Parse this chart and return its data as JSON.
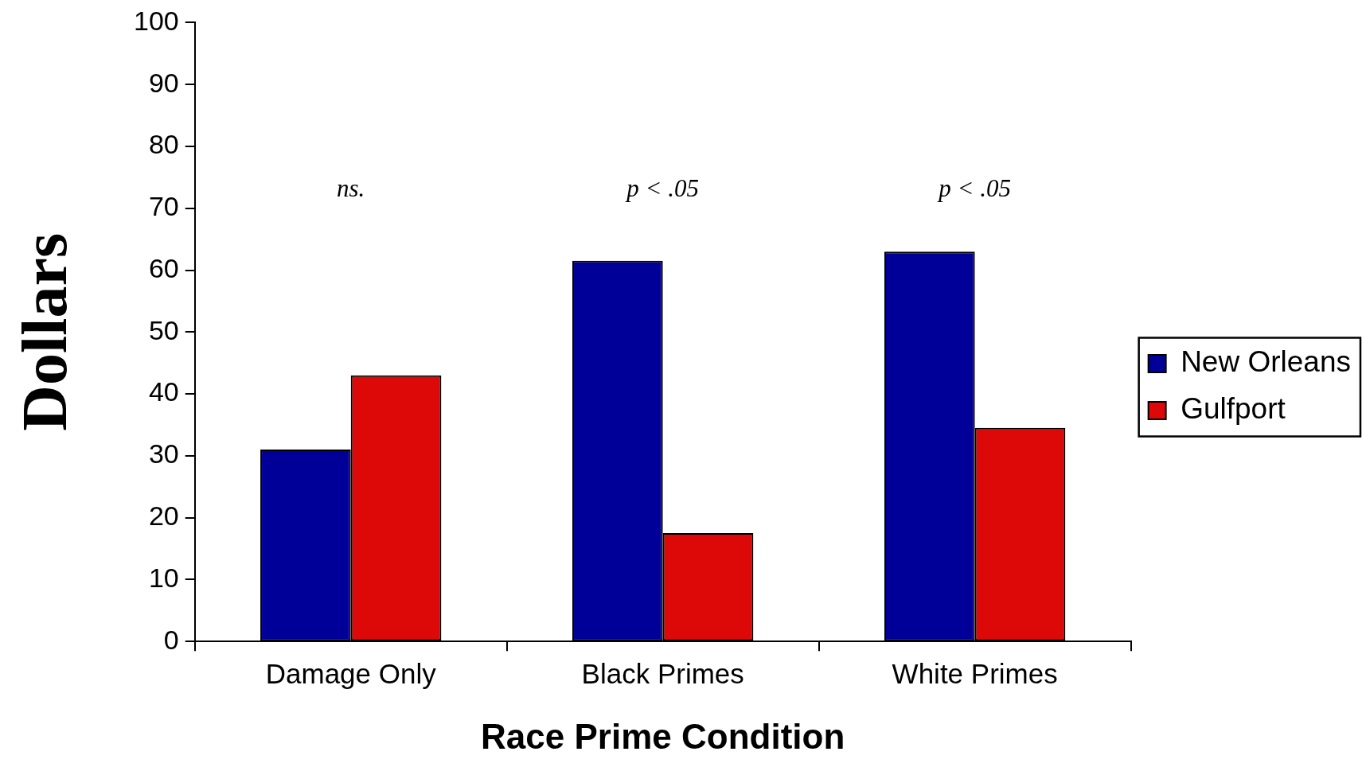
{
  "chart_data": {
    "type": "bar",
    "xlabel": "Race Prime Condition",
    "ylabel": "Dollars",
    "categories": [
      "Damage Only",
      "Black Primes",
      "White Primes"
    ],
    "series": [
      {
        "name": "New Orleans",
        "color": "#000099",
        "values": [
          31,
          61.5,
          63
        ]
      },
      {
        "name": "Gulfport",
        "color": "#dd0808",
        "values": [
          43,
          17.5,
          34.5
        ]
      }
    ],
    "ylim": [
      0,
      100
    ],
    "yticks": [
      0,
      10,
      20,
      30,
      40,
      50,
      60,
      70,
      80,
      90,
      100
    ],
    "grid": false,
    "legend": "right",
    "annotations": [
      "ns.",
      "p < .05",
      "p < .05"
    ]
  }
}
